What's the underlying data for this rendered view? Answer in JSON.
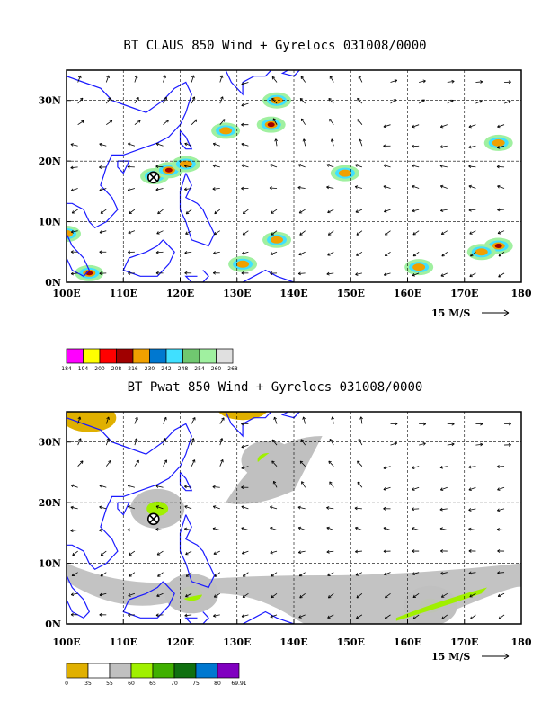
{
  "colors": {
    "coast": "#1a1aff",
    "cb1": [
      "#ff00ff",
      "#ffff00",
      "#ff0000",
      "#a00000",
      "#f0a000",
      "#0078d0",
      "#40e0ff",
      "#70c870",
      "#a0f0a0",
      "#e0e0e0"
    ],
    "cb2": [
      "#e0b000",
      "#ffffff",
      "#c0c0c0",
      "#a0f000",
      "#40b000",
      "#107010",
      "#0078d0",
      "#8000c0"
    ],
    "grid": "#000000"
  },
  "chart_data": [
    {
      "type": "heatmap",
      "title": "BT CLAUS 850 Wind + Gyrelocs 031008/0000",
      "x_ticks": [
        "100E",
        "110E",
        "120E",
        "130E",
        "140E",
        "150E",
        "160E",
        "170E",
        "180"
      ],
      "y_ticks": [
        "0N",
        "10N",
        "20N",
        "30N"
      ],
      "x_range": [
        100,
        180
      ],
      "y_range": [
        0,
        35
      ],
      "vector_scale_label": "15 M/S",
      "gyre_location": [
        115.3,
        17.3
      ],
      "colorbar_labels": [
        "184",
        "194",
        "200",
        "208",
        "216",
        "230",
        "242",
        "248",
        "254",
        "260",
        "268"
      ],
      "features": [
        {
          "lon": 115.5,
          "lat": 17.5,
          "level": 3
        },
        {
          "lon": 118,
          "lat": 18.5,
          "level": 3
        },
        {
          "lon": 121,
          "lat": 19.5,
          "level": 4
        },
        {
          "lon": 128,
          "lat": 25,
          "level": 4
        },
        {
          "lon": 136,
          "lat": 26,
          "level": 3
        },
        {
          "lon": 137,
          "lat": 30,
          "level": 4
        },
        {
          "lon": 176,
          "lat": 6,
          "level": 3
        },
        {
          "lon": 173,
          "lat": 5,
          "level": 4
        },
        {
          "lon": 162,
          "lat": 2.5,
          "level": 4
        },
        {
          "lon": 104,
          "lat": 1.5,
          "level": 3
        },
        {
          "lon": 176,
          "lat": 23,
          "level": 6
        },
        {
          "lon": 137,
          "lat": 7,
          "level": 6
        },
        {
          "lon": 131,
          "lat": 3,
          "level": 5
        },
        {
          "lon": 149,
          "lat": 18,
          "level": 6
        },
        {
          "lon": 100,
          "lat": 8,
          "level": 4
        }
      ]
    },
    {
      "type": "heatmap",
      "title": "BT Pwat 850 Wind + Gyrelocs 031008/0000",
      "x_ticks": [
        "100E",
        "110E",
        "120E",
        "130E",
        "140E",
        "150E",
        "160E",
        "170E",
        "180"
      ],
      "y_ticks": [
        "0N",
        "10N",
        "20N",
        "30N"
      ],
      "x_range": [
        100,
        180
      ],
      "y_range": [
        0,
        35
      ],
      "vector_scale_label": "15 M/S",
      "gyre_location": [
        115.3,
        17.3
      ],
      "colorbar_labels": [
        "0",
        "35",
        "55",
        "60",
        "65",
        "70",
        "75",
        "80",
        "69.91"
      ],
      "features": [
        {
          "lon": 135.5,
          "lat": 27,
          "level": 3
        },
        {
          "lon": 116,
          "lat": 19,
          "level": 3
        },
        {
          "lon": 122,
          "lat": 5,
          "level": 3
        },
        {
          "lon": 164,
          "lat": 3,
          "level": 3
        },
        {
          "lon": 104,
          "lat": 34,
          "level": 0
        },
        {
          "lon": 131,
          "lat": 36,
          "level": 0
        }
      ]
    }
  ]
}
